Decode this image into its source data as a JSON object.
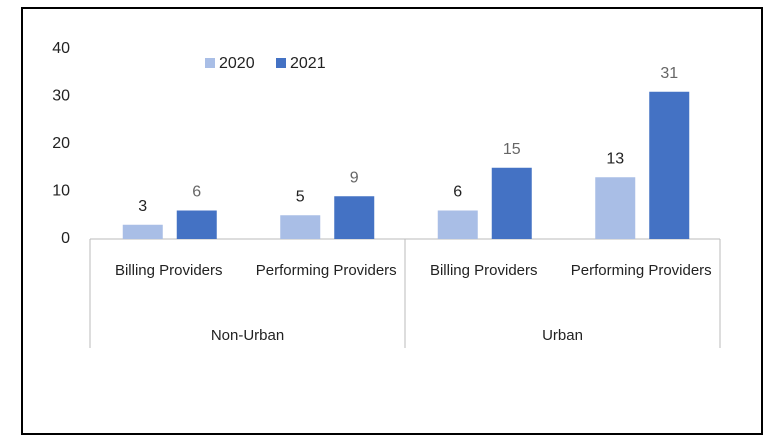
{
  "chart_data": {
    "type": "bar",
    "categories": [
      "Billing Providers",
      "Performing Providers",
      "Billing Providers",
      "Performing Providers"
    ],
    "groups": [
      "Non-Urban",
      "Urban"
    ],
    "series": [
      {
        "name": "2020",
        "color": "#a9bee6",
        "values": [
          3,
          5,
          6,
          13
        ]
      },
      {
        "name": "2021",
        "color": "#4472c4",
        "values": [
          6,
          9,
          15,
          31
        ]
      }
    ],
    "ylim": [
      0,
      40
    ],
    "yticks": [
      0,
      10,
      20,
      30,
      40
    ],
    "grid": false,
    "legend": "top"
  }
}
